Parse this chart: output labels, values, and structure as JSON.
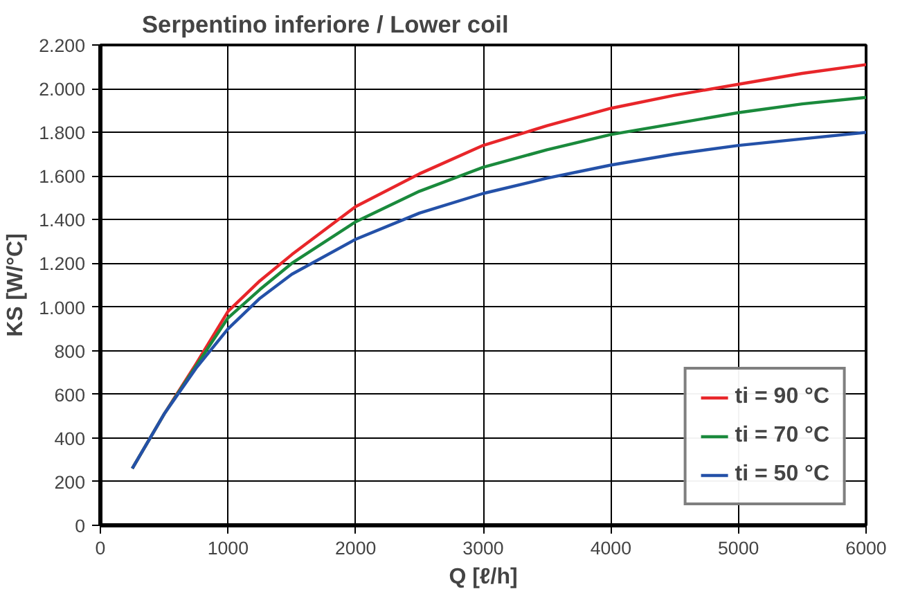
{
  "chart_data": {
    "type": "line",
    "title": "Serpentino inferiore / Lower coil",
    "xlabel": "Q [ℓ/h]",
    "ylabel": "KS [W/°C]",
    "x": [
      250,
      500,
      750,
      1000,
      1250,
      1500,
      2000,
      2500,
      3000,
      3500,
      4000,
      4500,
      5000,
      5500,
      6000
    ],
    "series": [
      {
        "name": "ti = 90 °C",
        "color": "#e8262a",
        "values": [
          260,
          510,
          740,
          980,
          1120,
          1240,
          1460,
          1610,
          1740,
          1830,
          1910,
          1970,
          2020,
          2070,
          2110
        ]
      },
      {
        "name": "ti = 70 °C",
        "color": "#1a8a3c",
        "values": [
          260,
          510,
          730,
          950,
          1080,
          1200,
          1390,
          1530,
          1640,
          1720,
          1790,
          1840,
          1890,
          1930,
          1960
        ]
      },
      {
        "name": "ti = 50 °C",
        "color": "#2451a8",
        "values": [
          260,
          510,
          720,
          900,
          1040,
          1150,
          1310,
          1430,
          1520,
          1590,
          1650,
          1700,
          1740,
          1770,
          1800
        ]
      }
    ],
    "xlim": [
      0,
      6000
    ],
    "xticks": [
      0,
      1000,
      2000,
      3000,
      4000,
      5000,
      6000
    ],
    "ylim": [
      0,
      2200
    ],
    "yticks": [
      0,
      200,
      400,
      600,
      800,
      {
        "value": 1000,
        "label": "1.000"
      },
      {
        "value": 1200,
        "label": "1.200"
      },
      {
        "value": 1400,
        "label": "1.400"
      },
      {
        "value": 1600,
        "label": "1.600"
      },
      {
        "value": 1800,
        "label": "1.800"
      },
      {
        "value": 2000,
        "label": "2.000"
      },
      {
        "value": 2200,
        "label": "2.200"
      }
    ],
    "grid": true,
    "legend": "bottom right",
    "line_style": "solid"
  }
}
